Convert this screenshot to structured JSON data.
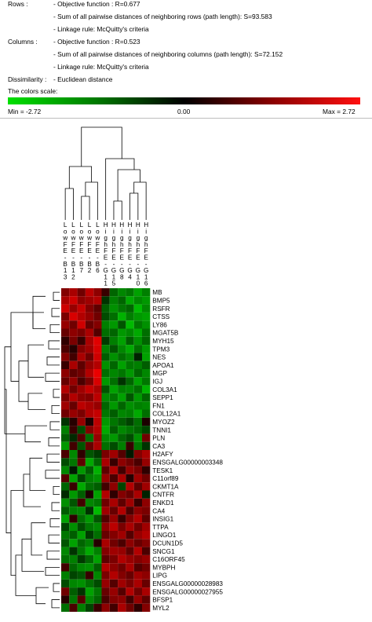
{
  "info": {
    "rows_label": "Rows :",
    "rows_objective": "- Objective function : R=0.677",
    "rows_sum": "- Sum of all pairwise distances of neighboring rows (path length): S=93.583",
    "rows_linkage": "- Linkage rule:  McQuitty's criteria",
    "columns_label": "Columns :",
    "columns_objective": "- Objective function : R=0.523",
    "columns_sum": "- Sum of all pairwise distances of neighboring columns (path length): S=72.152",
    "columns_linkage": "- Linkage rule:  McQuitty's criteria",
    "dissimilarity_label": "Dissimilarity :",
    "dissimilarity_value": "- Euclidean distance",
    "colors_scale_label": "The colors scale:"
  },
  "scale": {
    "min_label": "Min = -2.72",
    "mid_label": "0.00",
    "max_label": "Max = 2.72",
    "min": -2.72,
    "max": 2.72,
    "colors": {
      "low": "#00e000",
      "mid": "#000000",
      "high": "#ff1010"
    }
  },
  "chart_data": {
    "type": "heatmap",
    "columns": [
      "LowFE-B13",
      "LowFE-B12",
      "LowFE-B7",
      "LowFE-B2",
      "LowFE-B6",
      "HighFE-G11",
      "HighFE-G15",
      "HighFE-G8",
      "HighFE-G4",
      "HighFE-G10",
      "HighFE-G16"
    ],
    "column_label_lines": [
      [
        "L",
        "o",
        "w",
        "F",
        "E",
        "-",
        "B",
        "1",
        "3"
      ],
      [
        "L",
        "o",
        "w",
        "F",
        "E",
        "-",
        "B",
        "1",
        "2"
      ],
      [
        "L",
        "o",
        "w",
        "F",
        "E",
        "-",
        "B",
        "7"
      ],
      [
        "L",
        "o",
        "w",
        "F",
        "E",
        "-",
        "B",
        "2"
      ],
      [
        "L",
        "o",
        "w",
        "F",
        "E",
        "-",
        "B",
        "6"
      ],
      [
        "H",
        "i",
        "g",
        "h",
        "F",
        "E",
        "-",
        "G",
        "1",
        "1"
      ],
      [
        "H",
        "i",
        "g",
        "h",
        "F",
        "E",
        "-",
        "G",
        "1",
        "5"
      ],
      [
        "H",
        "i",
        "g",
        "h",
        "F",
        "E",
        "-",
        "G",
        "8"
      ],
      [
        "H",
        "i",
        "g",
        "h",
        "F",
        "E",
        "-",
        "G",
        "4"
      ],
      [
        "H",
        "i",
        "g",
        "h",
        "F",
        "E",
        "-",
        "G",
        "1",
        "0"
      ],
      [
        "H",
        "i",
        "g",
        "h",
        "F",
        "E",
        "-",
        "G",
        "1",
        "6"
      ]
    ],
    "rows": [
      "MB",
      "BMP5",
      "RSFR",
      "CTSS",
      "LY86",
      "MGAT5B",
      "MYH15",
      "TPM3",
      "NES",
      "APOA1",
      "MGP",
      "IGJ",
      "COL3A1",
      "SEPP1",
      "FN1",
      "COL12A1",
      "MYOZ2",
      "TNNI1",
      "PLN",
      "CA3",
      "H2AFY",
      "ENSGALG00000003348",
      "TESK1",
      "C11orf89",
      "CKMT1A",
      "CNTFR",
      "ENKD1",
      "CA4",
      "INSIG1",
      "TTPA",
      "LINGO1",
      "DCUN1D5",
      "SNCG1",
      "C16ORF45",
      "MYBPH",
      "LIPG",
      "ENSGALG00000028983",
      "ENSGALG00000027955",
      "BFSP1",
      "MYL2"
    ],
    "values": [
      [
        1.4,
        1.8,
        1.2,
        2.0,
        1.5,
        0.6,
        -1.2,
        -1.6,
        -1.4,
        -1.9,
        -1.5
      ],
      [
        1.8,
        2.2,
        1.5,
        1.7,
        1.9,
        -0.6,
        -1.5,
        -1.2,
        -2.0,
        -1.6,
        -1.8
      ],
      [
        2.2,
        1.6,
        2.1,
        1.4,
        1.0,
        -1.1,
        -1.7,
        -1.4,
        -1.2,
        -2.2,
        -1.6
      ],
      [
        1.3,
        2.3,
        1.9,
        1.6,
        1.2,
        -0.9,
        -1.3,
        -2.1,
        -1.5,
        -1.8,
        -1.9
      ],
      [
        1.6,
        1.2,
        2.2,
        1.1,
        1.4,
        -1.5,
        -1.8,
        -1.0,
        -2.2,
        -1.4,
        -1.7
      ],
      [
        1.1,
        1.5,
        1.3,
        1.8,
        0.9,
        -1.3,
        -1.2,
        -1.8,
        -1.6,
        -2.0,
        -1.3
      ],
      [
        0.5,
        1.3,
        0.6,
        1.8,
        2.4,
        -0.7,
        -1.5,
        -1.9,
        -1.1,
        -1.7,
        -1.2
      ],
      [
        0.8,
        0.4,
        1.4,
        1.7,
        2.3,
        -1.5,
        -1.0,
        -1.6,
        -2.0,
        -1.3,
        -1.8
      ],
      [
        1.4,
        0.7,
        1.8,
        1.2,
        2.2,
        -1.1,
        -1.7,
        -1.3,
        -1.6,
        -0.4,
        -1.9
      ],
      [
        0.6,
        1.8,
        1.0,
        1.6,
        1.9,
        -1.7,
        -1.2,
        -1.9,
        -1.4,
        -1.5,
        -1.1
      ],
      [
        1.5,
        1.0,
        1.2,
        1.9,
        2.5,
        -1.3,
        -1.6,
        -1.4,
        -1.8,
        -1.2,
        -1.6
      ],
      [
        1.1,
        1.6,
        0.8,
        1.3,
        2.3,
        -1.8,
        -1.3,
        -0.6,
        -1.2,
        -1.9,
        -1.4
      ],
      [
        1.9,
        1.2,
        1.7,
        2.1,
        1.8,
        -1.0,
        -1.9,
        -1.5,
        -1.6,
        -1.3,
        -2.1
      ],
      [
        1.3,
        1.9,
        1.5,
        1.4,
        2.0,
        -1.6,
        -1.4,
        -1.9,
        -1.0,
        -1.8,
        -1.2
      ],
      [
        1.7,
        1.1,
        2.0,
        1.8,
        1.6,
        -1.2,
        -1.8,
        -1.2,
        -1.7,
        -1.5,
        -1.6
      ],
      [
        1.2,
        1.6,
        1.3,
        1.9,
        2.1,
        -1.4,
        -1.1,
        -1.6,
        -1.5,
        -2.0,
        -1.3
      ],
      [
        -0.6,
        0.4,
        1.6,
        0.3,
        2.0,
        -1.8,
        -1.4,
        -1.1,
        -0.8,
        -1.3,
        0.3
      ],
      [
        -1.5,
        0.6,
        -0.9,
        1.4,
        1.9,
        -2.0,
        -1.1,
        -1.6,
        -1.4,
        -1.2,
        -0.8
      ],
      [
        -1.1,
        -0.5,
        0.9,
        -1.3,
        1.6,
        -1.6,
        -1.8,
        -1.2,
        -0.9,
        -1.7,
        1.2
      ],
      [
        -1.8,
        0.7,
        -1.0,
        1.1,
        1.8,
        -1.3,
        -0.9,
        -1.5,
        0.6,
        -1.4,
        -0.6
      ],
      [
        0.8,
        -1.6,
        0.5,
        -1.0,
        -0.7,
        1.3,
        1.7,
        0.9,
        -0.3,
        1.4,
        1.8
      ],
      [
        -0.9,
        -1.4,
        1.0,
        -2.0,
        -1.2,
        1.8,
        0.6,
        1.5,
        1.2,
        0.8,
        1.6
      ],
      [
        -1.6,
        -0.3,
        -1.8,
        -1.1,
        -2.1,
        1.0,
        1.9,
        0.7,
        1.6,
        1.3,
        0.5
      ],
      [
        0.9,
        -1.9,
        -0.8,
        -1.5,
        -1.7,
        1.6,
        0.8,
        1.8,
        0.4,
        1.7,
        1.2
      ],
      [
        -1.2,
        0.6,
        -2.0,
        -1.3,
        -1.1,
        0.7,
        1.5,
        -0.8,
        1.9,
        1.0,
        1.7
      ],
      [
        -0.5,
        -1.8,
        -1.1,
        0.3,
        -1.9,
        1.9,
        0.5,
        1.4,
        1.1,
        1.8,
        -0.4
      ],
      [
        -1.7,
        -1.0,
        0.7,
        -1.6,
        -1.4,
        1.2,
        1.8,
        1.0,
        1.7,
        0.6,
        1.5
      ],
      [
        -1.1,
        -1.5,
        -1.6,
        -0.6,
        -2.2,
        1.7,
        1.1,
        1.9,
        0.8,
        1.5,
        1.3
      ],
      [
        -1.9,
        0.5,
        -1.3,
        -1.8,
        -1.0,
        0.9,
        1.6,
        0.6,
        1.4,
        1.9,
        1.0
      ],
      [
        -0.8,
        -1.7,
        -0.9,
        -1.4,
        -1.6,
        1.5,
        2.0,
        1.3,
        1.8,
        1.2,
        1.7
      ],
      [
        -1.4,
        -1.1,
        -1.9,
        -0.7,
        -1.3,
        1.1,
        1.4,
        1.7,
        0.9,
        1.6,
        1.9
      ],
      [
        -1.0,
        -1.9,
        -1.2,
        -1.5,
        0.4,
        1.8,
        1.2,
        0.8,
        1.5,
        1.1,
        1.4
      ],
      [
        -1.6,
        -0.6,
        -1.4,
        -2.0,
        -1.5,
        1.4,
        1.7,
        1.6,
        1.0,
        1.9,
        0.8
      ],
      [
        -1.3,
        -1.5,
        -0.7,
        -1.2,
        -1.9,
        1.0,
        1.3,
        1.9,
        1.6,
        1.4,
        1.6
      ],
      [
        0.7,
        -1.2,
        -1.6,
        -1.7,
        -1.1,
        1.9,
        1.5,
        1.2,
        1.8,
        0.9,
        1.2
      ],
      [
        -1.5,
        -0.8,
        -1.0,
        0.6,
        -1.6,
        1.3,
        1.9,
        1.4,
        1.1,
        1.7,
        1.5
      ],
      [
        -0.9,
        -1.6,
        -1.7,
        -1.3,
        -0.9,
        1.6,
        0.9,
        1.7,
        1.3,
        1.8,
        1.1
      ],
      [
        1.2,
        -1.1,
        -0.6,
        -1.9,
        -1.4,
        1.1,
        1.6,
        0.9,
        1.9,
        1.2,
        1.8
      ],
      [
        0.4,
        -1.4,
        0.9,
        -1.6,
        -1.2,
        0.8,
        1.4,
        1.5,
        0.7,
        1.6,
        1.0
      ],
      [
        -1.3,
        0.8,
        -1.5,
        -0.8,
        0.6,
        1.5,
        0.7,
        1.8,
        1.2,
        0.5,
        1.4
      ]
    ],
    "value_range": [
      -2.72,
      2.72
    ],
    "row_dendrogram": true,
    "column_dendrogram": true,
    "legend_placement": "top"
  }
}
